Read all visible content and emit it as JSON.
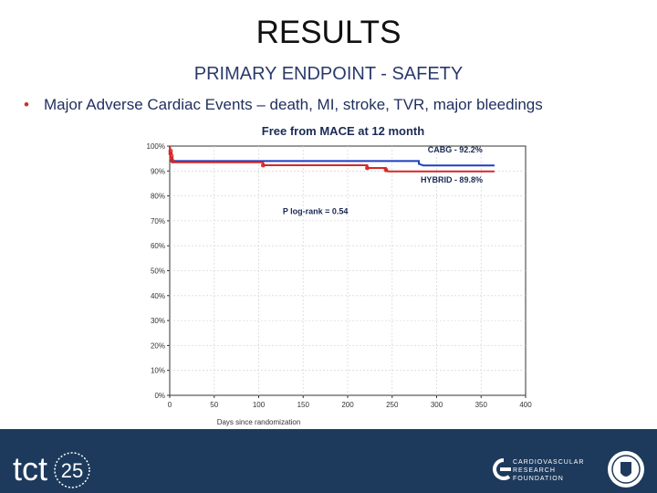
{
  "slide": {
    "title": "RESULTS",
    "subtitle": "PRIMARY ENDPOINT - SAFETY",
    "bullet": "Major Adverse Cardiac Events – death, MI, stroke, TVR, major bleedings"
  },
  "footer": {
    "brand": "tct",
    "edition": "25",
    "foundation_lines": [
      "CARDIOVASCULAR",
      "RESEARCH",
      "FOUNDATION"
    ]
  },
  "colors": {
    "footer_bg": "#1d3a5c",
    "cabg": "#1f3fbf",
    "hybrid": "#d42828",
    "bullet": "#c0392b"
  },
  "chart_data": {
    "type": "line",
    "title": "Free from MACE at 12 month",
    "xlabel": "Days since randomization",
    "ylabel": "",
    "xlim": [
      0,
      400
    ],
    "ylim": [
      0,
      100
    ],
    "x_ticks": [
      "0",
      "50",
      "100",
      "150",
      "200",
      "250",
      "300",
      "350",
      "400"
    ],
    "y_ticks": [
      "0%",
      "10%",
      "20%",
      "30%",
      "40%",
      "50%",
      "60%",
      "70%",
      "80%",
      "90%",
      "100%"
    ],
    "annotation": "P log-rank = 0.54",
    "series": [
      {
        "name": "CABG - 92.2%",
        "color": "#1f3fbf",
        "points": [
          [
            0,
            100
          ],
          [
            1,
            96
          ],
          [
            2,
            95
          ],
          [
            3,
            94
          ],
          [
            280,
            94
          ],
          [
            280,
            92.9
          ],
          [
            285,
            92.2
          ],
          [
            365,
            92.2
          ]
        ]
      },
      {
        "name": "HYBRID - 89.8%",
        "color": "#d42828",
        "points": [
          [
            0,
            100
          ],
          [
            1,
            97
          ],
          [
            2,
            95
          ],
          [
            3,
            93.5
          ],
          [
            105,
            93.5
          ],
          [
            105,
            92.3
          ],
          [
            222,
            92.3
          ],
          [
            222,
            91.2
          ],
          [
            243,
            91.2
          ],
          [
            243,
            90.4
          ],
          [
            245,
            89.8
          ],
          [
            365,
            89.8
          ]
        ],
        "markers": [
          [
            1,
            98
          ],
          [
            1,
            97
          ],
          [
            2,
            96
          ],
          [
            2,
            95
          ],
          [
            3,
            94
          ],
          [
            105,
            92.3
          ],
          [
            222,
            91.2
          ],
          [
            243,
            90.4
          ]
        ]
      }
    ]
  }
}
